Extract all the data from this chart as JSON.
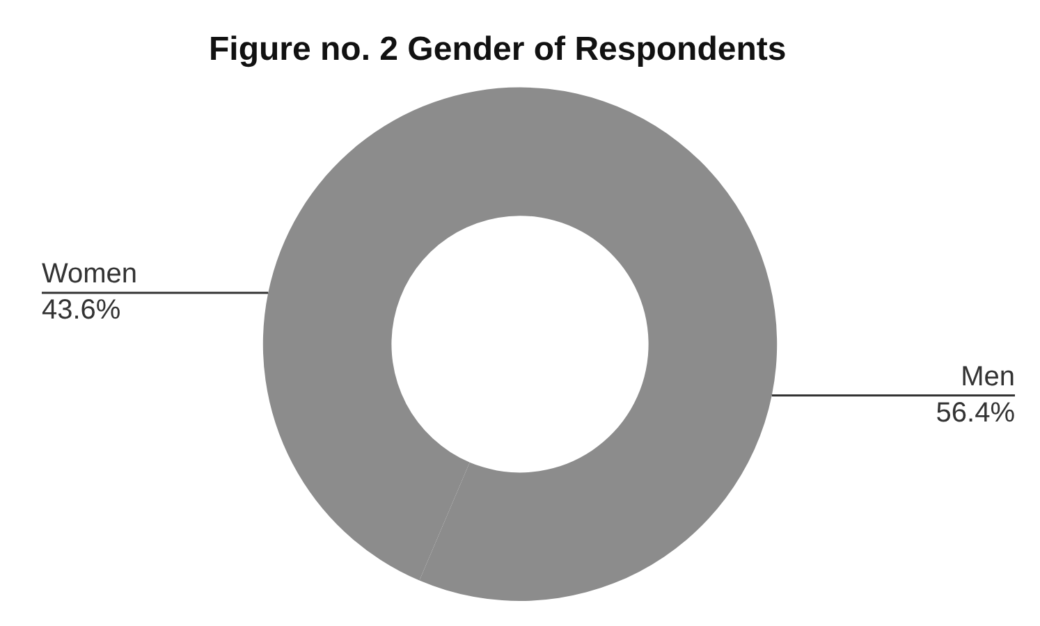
{
  "chart_data": {
    "type": "donut",
    "title": "Figure no. 2 Gender of Respondents",
    "categories": [
      "Men",
      "Women"
    ],
    "values": [
      56.4,
      43.6
    ],
    "value_labels": [
      "56.4%",
      "43.6%"
    ],
    "colors": [
      "#8c8c8c",
      "#8c8c8c"
    ],
    "legend": false
  }
}
